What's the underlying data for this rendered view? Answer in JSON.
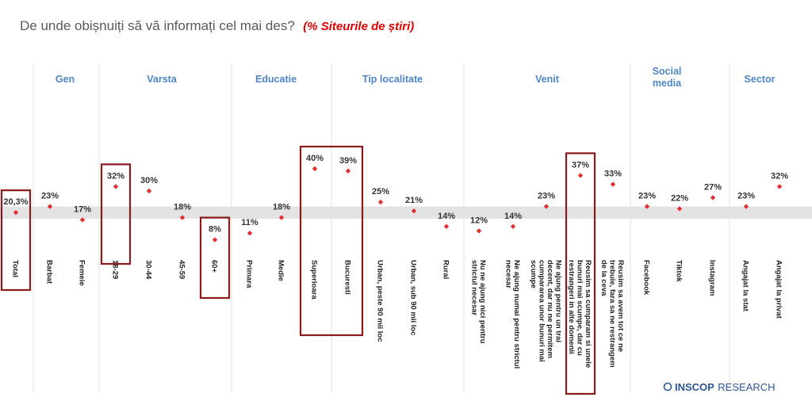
{
  "header": {
    "title": "De unde obișnuiți să vă informați cel mai des?",
    "subtitle": "(% Siteurile de știri)"
  },
  "logo": {
    "brand": "INSCOP",
    "suffix": "RESEARCH"
  },
  "colors": {
    "marker": "#e03030",
    "group_label": "#4f86c6",
    "highlight_box": "#8b1a1a",
    "band": "#e3e3e3"
  },
  "chart_data": {
    "type": "scatter",
    "title": "De unde obișnuiți să vă informați cel mai des?",
    "subtitle": "(% Siteurile de știri)",
    "ylim": [
      0,
      50
    ],
    "grid": false,
    "legend": "none",
    "groups": [
      {
        "name": "",
        "categories": [
          "Total"
        ]
      },
      {
        "name": "Gen",
        "categories": [
          "Barbat",
          "Femeie"
        ]
      },
      {
        "name": "Varsta",
        "categories": [
          "18-29",
          "30-44",
          "45-59",
          "60+"
        ]
      },
      {
        "name": "Educatie",
        "categories": [
          "Primara",
          "Medie",
          "Superioara",
          "Bucuresti"
        ]
      },
      {
        "name": "Tip localitate",
        "categories": [
          "Urban, peste 90 mii loc",
          "Urban, sub 90 mii loc",
          "Rural"
        ]
      },
      {
        "name": "Venit",
        "categories": [
          "Nu ne ajung nici pentru strictul necesar",
          "Ne ajung numai pentru strictul necesar",
          "Ne ajung pentru un trai decent, dar nu ne permitem cumpararea unor bunuri mai scumpe",
          "Reusim sa cumparam si unele bunuri mai scumpe, dar cu restrangeri in alte domenii",
          "Reusim sa avem tot ce ne trebuie, fara sa ne restrangem de la ceva"
        ]
      },
      {
        "name": "Social media",
        "categories": [
          "Facebook",
          "Tiktok",
          "Instagram"
        ]
      },
      {
        "name": "Sector",
        "categories": [
          "Angajat la stat",
          "Angajat la privat"
        ]
      }
    ],
    "categories": [
      "Total",
      "Barbat",
      "Femeie",
      "18-29",
      "30-44",
      "45-59",
      "60+",
      "Primara",
      "Medie",
      "Superioara",
      "Bucuresti",
      "Urban, peste 90 mii loc",
      "Urban, sub 90 mii loc",
      "Rural",
      "Nu ne ajung nici pentru strictul necesar",
      "Ne ajung numai pentru strictul necesar",
      "Ne ajung pentru un trai decent, dar nu ne permitem cumpararea unor bunuri mai scumpe",
      "Reusim sa cumparam si unele bunuri mai scumpe, dar cu restrangeri in alte domenii",
      "Reusim sa avem tot ce ne trebuie, fara sa ne restrangem de la ceva",
      "Facebook",
      "Tiktok",
      "Instagram",
      "Angajat la stat",
      "Angajat la privat"
    ],
    "values": [
      20.3,
      23,
      17,
      32,
      30,
      18,
      8,
      11,
      18,
      40,
      39,
      25,
      21,
      14,
      12,
      14,
      23,
      37,
      33,
      23,
      22,
      27,
      23,
      32
    ],
    "value_labels": [
      "20,3%",
      "23%",
      "17%",
      "32%",
      "30%",
      "18%",
      "8%",
      "11%",
      "18%",
      "40%",
      "39%",
      "25%",
      "21%",
      "14%",
      "12%",
      "14%",
      "23%",
      "37%",
      "33%",
      "23%",
      "22%",
      "27%",
      "23%",
      "32%"
    ],
    "reference_band": [
      17.5,
      23
    ],
    "highlighted": [
      [
        "Total"
      ],
      [
        "18-29"
      ],
      [
        "60+"
      ],
      [
        "Superioara",
        "Bucuresti"
      ],
      [
        "Reusim sa cumparam si unele bunuri mai scumpe, dar cu restrangeri in alte domenii"
      ]
    ]
  }
}
